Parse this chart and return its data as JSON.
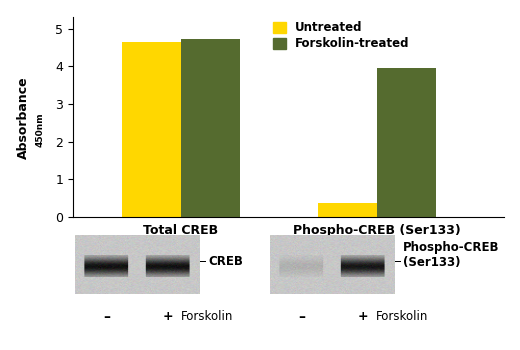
{
  "categories": [
    "Total CREB",
    "Phospho-CREB (Ser133)"
  ],
  "untreated_values": [
    4.65,
    0.38
  ],
  "forskolin_values": [
    4.72,
    3.97
  ],
  "bar_color_untreated": "#FFD700",
  "bar_color_forskolin": "#556B2F",
  "ylabel_main": "Absorbance",
  "ylabel_sub": "450nm",
  "ylim": [
    0,
    5.3
  ],
  "yticks": [
    0,
    1,
    2,
    3,
    4,
    5
  ],
  "legend_untreated": "Untreated",
  "legend_forskolin": "Forskolin-treated",
  "bar_width": 0.3,
  "background_color": "#ffffff",
  "wb_label1": "CREB",
  "wb_label2": "Phospho-CREB\n(Ser133)",
  "wb_sublabel": "Forskolin",
  "wb_minus": "–",
  "wb_plus": "+"
}
